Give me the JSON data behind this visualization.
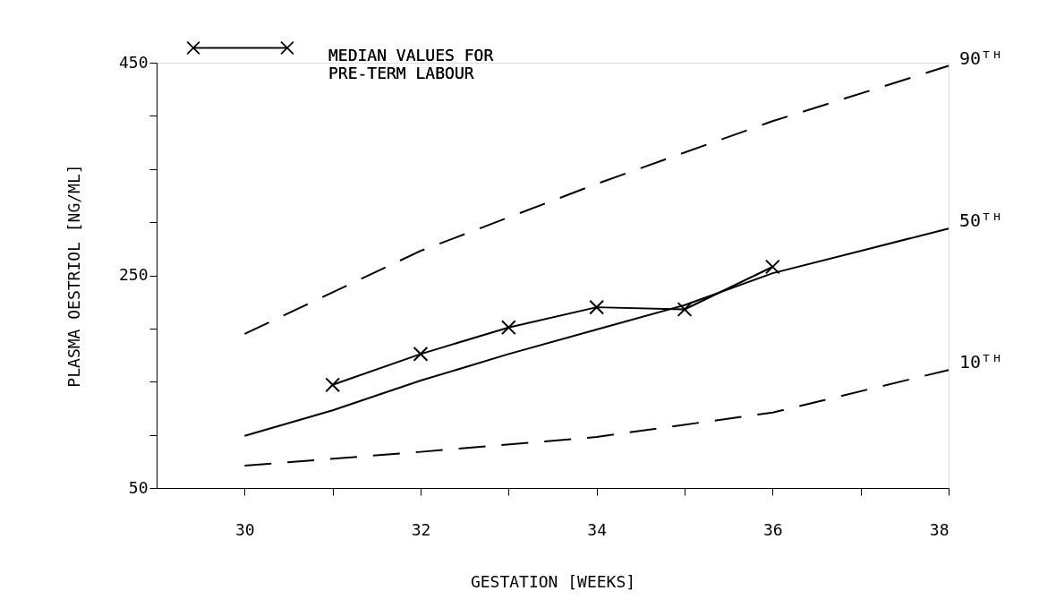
{
  "chart_data": {
    "type": "line",
    "xlabel": "GESTATION [WEEKS]",
    "ylabel": "PLASMA OESTRIOL [NG/ML]",
    "series": [
      {
        "name": "90ᵀᴴ",
        "color": "#000000",
        "line_style": "dashed",
        "marker": "none",
        "x": [
          30,
          32,
          34,
          36,
          38
        ],
        "values": [
          195,
          273,
          336,
          395,
          447
        ]
      },
      {
        "name": "50ᵀᴴ",
        "color": "#000000",
        "line_style": "solid",
        "marker": "none",
        "x": [
          30,
          31,
          32,
          33,
          34,
          35,
          36,
          37,
          38
        ],
        "values": [
          99,
          123,
          151,
          176,
          199,
          222,
          252,
          273,
          294
        ]
      },
      {
        "name": "10ᵀᴴ",
        "color": "#000000",
        "line_style": "dashed",
        "marker": "none",
        "x": [
          30,
          32,
          34,
          36,
          38
        ],
        "values": [
          71,
          84,
          98,
          121,
          161
        ]
      },
      {
        "name": "MEDIAN VALUES FOR\nPRE-TERM LABOUR",
        "color": "#000000",
        "line_style": "solid",
        "marker": "cross",
        "x": [
          31,
          32,
          33,
          34,
          35,
          36
        ],
        "values": [
          147,
          176,
          201,
          220,
          218,
          258
        ]
      }
    ],
    "xlim": [
      29,
      38
    ],
    "ylim": [
      50,
      450
    ],
    "xticks": [
      30,
      {
        "value": 31,
        "label": null
      },
      32,
      {
        "value": 33,
        "label": null
      },
      34,
      {
        "value": 35,
        "label": null
      },
      36,
      {
        "value": 37,
        "label": null
      },
      38
    ],
    "yticks": [
      50,
      {
        "value": 100,
        "label": null
      },
      {
        "value": 150,
        "label": null
      },
      {
        "value": 200,
        "label": null
      },
      250,
      {
        "value": 300,
        "label": null
      },
      {
        "value": 350,
        "label": null
      },
      {
        "value": 400,
        "label": null
      },
      450
    ],
    "grid": false,
    "legend": "top left"
  }
}
